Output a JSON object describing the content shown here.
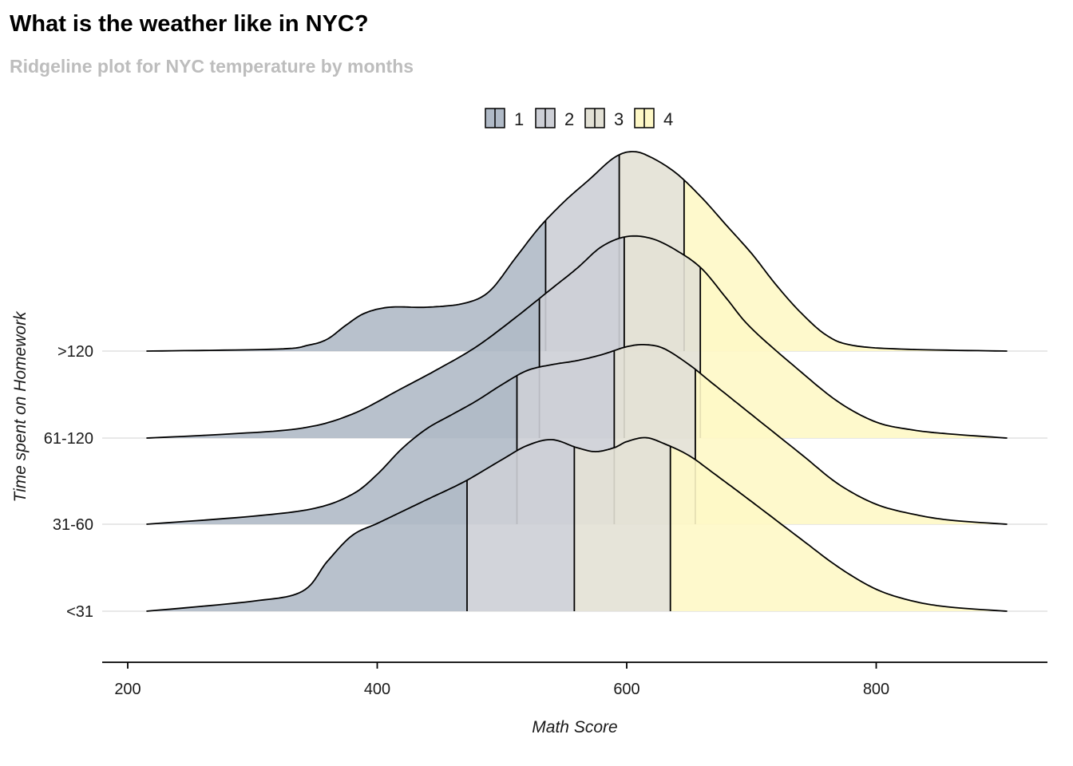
{
  "chart_data": {
    "type": "ridgeline",
    "title": "What is the weather like in NYC?",
    "subtitle": "Ridgeline plot for NYC temperature by months",
    "xlabel": "Math Score",
    "ylabel": "Time spent on Homework",
    "xlim": [
      215,
      905
    ],
    "x_ticks": [
      200,
      400,
      600,
      800
    ],
    "categories": [
      "<31",
      "31-60",
      "61-120",
      ">120"
    ],
    "legend": {
      "position": "top",
      "entries": [
        {
          "label": "1",
          "color": "#B0BAC7"
        },
        {
          "label": "2",
          "color": "#CDCFD6"
        },
        {
          "label": "3",
          "color": "#E3E1D5"
        },
        {
          "label": "4",
          "color": "#FEF8C6"
        }
      ]
    },
    "quantile_colors": [
      "#B0BAC7",
      "#CDCFD6",
      "#E3E1D5",
      "#FEF8C6"
    ],
    "gridlines": true,
    "series": [
      {
        "name": "<31",
        "quartiles": [
          472,
          558,
          635
        ],
        "density": [
          [
            215,
            0
          ],
          [
            300,
            0.05
          ],
          [
            340,
            0.1
          ],
          [
            360,
            0.25
          ],
          [
            380,
            0.38
          ],
          [
            400,
            0.44
          ],
          [
            420,
            0.5
          ],
          [
            440,
            0.56
          ],
          [
            470,
            0.65
          ],
          [
            500,
            0.76
          ],
          [
            520,
            0.83
          ],
          [
            540,
            0.86
          ],
          [
            560,
            0.82
          ],
          [
            575,
            0.8
          ],
          [
            590,
            0.82
          ],
          [
            600,
            0.85
          ],
          [
            615,
            0.87
          ],
          [
            630,
            0.84
          ],
          [
            650,
            0.78
          ],
          [
            670,
            0.69
          ],
          [
            700,
            0.55
          ],
          [
            740,
            0.36
          ],
          [
            770,
            0.22
          ],
          [
            800,
            0.11
          ],
          [
            830,
            0.05
          ],
          [
            860,
            0.02
          ],
          [
            905,
            0
          ]
        ]
      },
      {
        "name": "31-60",
        "quartiles": [
          512,
          590,
          655
        ],
        "density": [
          [
            215,
            0
          ],
          [
            300,
            0.04
          ],
          [
            350,
            0.08
          ],
          [
            380,
            0.15
          ],
          [
            400,
            0.25
          ],
          [
            420,
            0.38
          ],
          [
            440,
            0.48
          ],
          [
            460,
            0.55
          ],
          [
            480,
            0.62
          ],
          [
            500,
            0.7
          ],
          [
            520,
            0.77
          ],
          [
            540,
            0.8
          ],
          [
            560,
            0.82
          ],
          [
            580,
            0.85
          ],
          [
            600,
            0.89
          ],
          [
            615,
            0.9
          ],
          [
            630,
            0.88
          ],
          [
            650,
            0.8
          ],
          [
            670,
            0.7
          ],
          [
            700,
            0.55
          ],
          [
            740,
            0.35
          ],
          [
            770,
            0.2
          ],
          [
            800,
            0.1
          ],
          [
            830,
            0.05
          ],
          [
            860,
            0.02
          ],
          [
            905,
            0
          ]
        ]
      },
      {
        "name": "61-120",
        "quartiles": [
          530,
          598,
          659
        ],
        "density": [
          [
            215,
            0
          ],
          [
            280,
            0.02
          ],
          [
            340,
            0.05
          ],
          [
            380,
            0.12
          ],
          [
            420,
            0.25
          ],
          [
            450,
            0.35
          ],
          [
            480,
            0.46
          ],
          [
            510,
            0.6
          ],
          [
            540,
            0.75
          ],
          [
            560,
            0.85
          ],
          [
            580,
            0.96
          ],
          [
            600,
            1.01
          ],
          [
            620,
            1.0
          ],
          [
            640,
            0.94
          ],
          [
            660,
            0.85
          ],
          [
            680,
            0.7
          ],
          [
            700,
            0.55
          ],
          [
            740,
            0.33
          ],
          [
            770,
            0.18
          ],
          [
            800,
            0.08
          ],
          [
            830,
            0.04
          ],
          [
            860,
            0.02
          ],
          [
            905,
            0
          ]
        ]
      },
      {
        "name": ">120",
        "quartiles": [
          535,
          594,
          646
        ],
        "density": [
          [
            215,
            0
          ],
          [
            320,
            0.01
          ],
          [
            345,
            0.03
          ],
          [
            360,
            0.06
          ],
          [
            375,
            0.13
          ],
          [
            390,
            0.19
          ],
          [
            410,
            0.22
          ],
          [
            440,
            0.22
          ],
          [
            470,
            0.24
          ],
          [
            490,
            0.3
          ],
          [
            510,
            0.46
          ],
          [
            530,
            0.62
          ],
          [
            550,
            0.75
          ],
          [
            570,
            0.86
          ],
          [
            590,
            0.97
          ],
          [
            605,
            1.0
          ],
          [
            620,
            0.97
          ],
          [
            640,
            0.89
          ],
          [
            660,
            0.77
          ],
          [
            680,
            0.63
          ],
          [
            700,
            0.49
          ],
          [
            720,
            0.33
          ],
          [
            740,
            0.19
          ],
          [
            760,
            0.08
          ],
          [
            780,
            0.03
          ],
          [
            820,
            0.01
          ],
          [
            905,
            0
          ]
        ]
      }
    ]
  }
}
